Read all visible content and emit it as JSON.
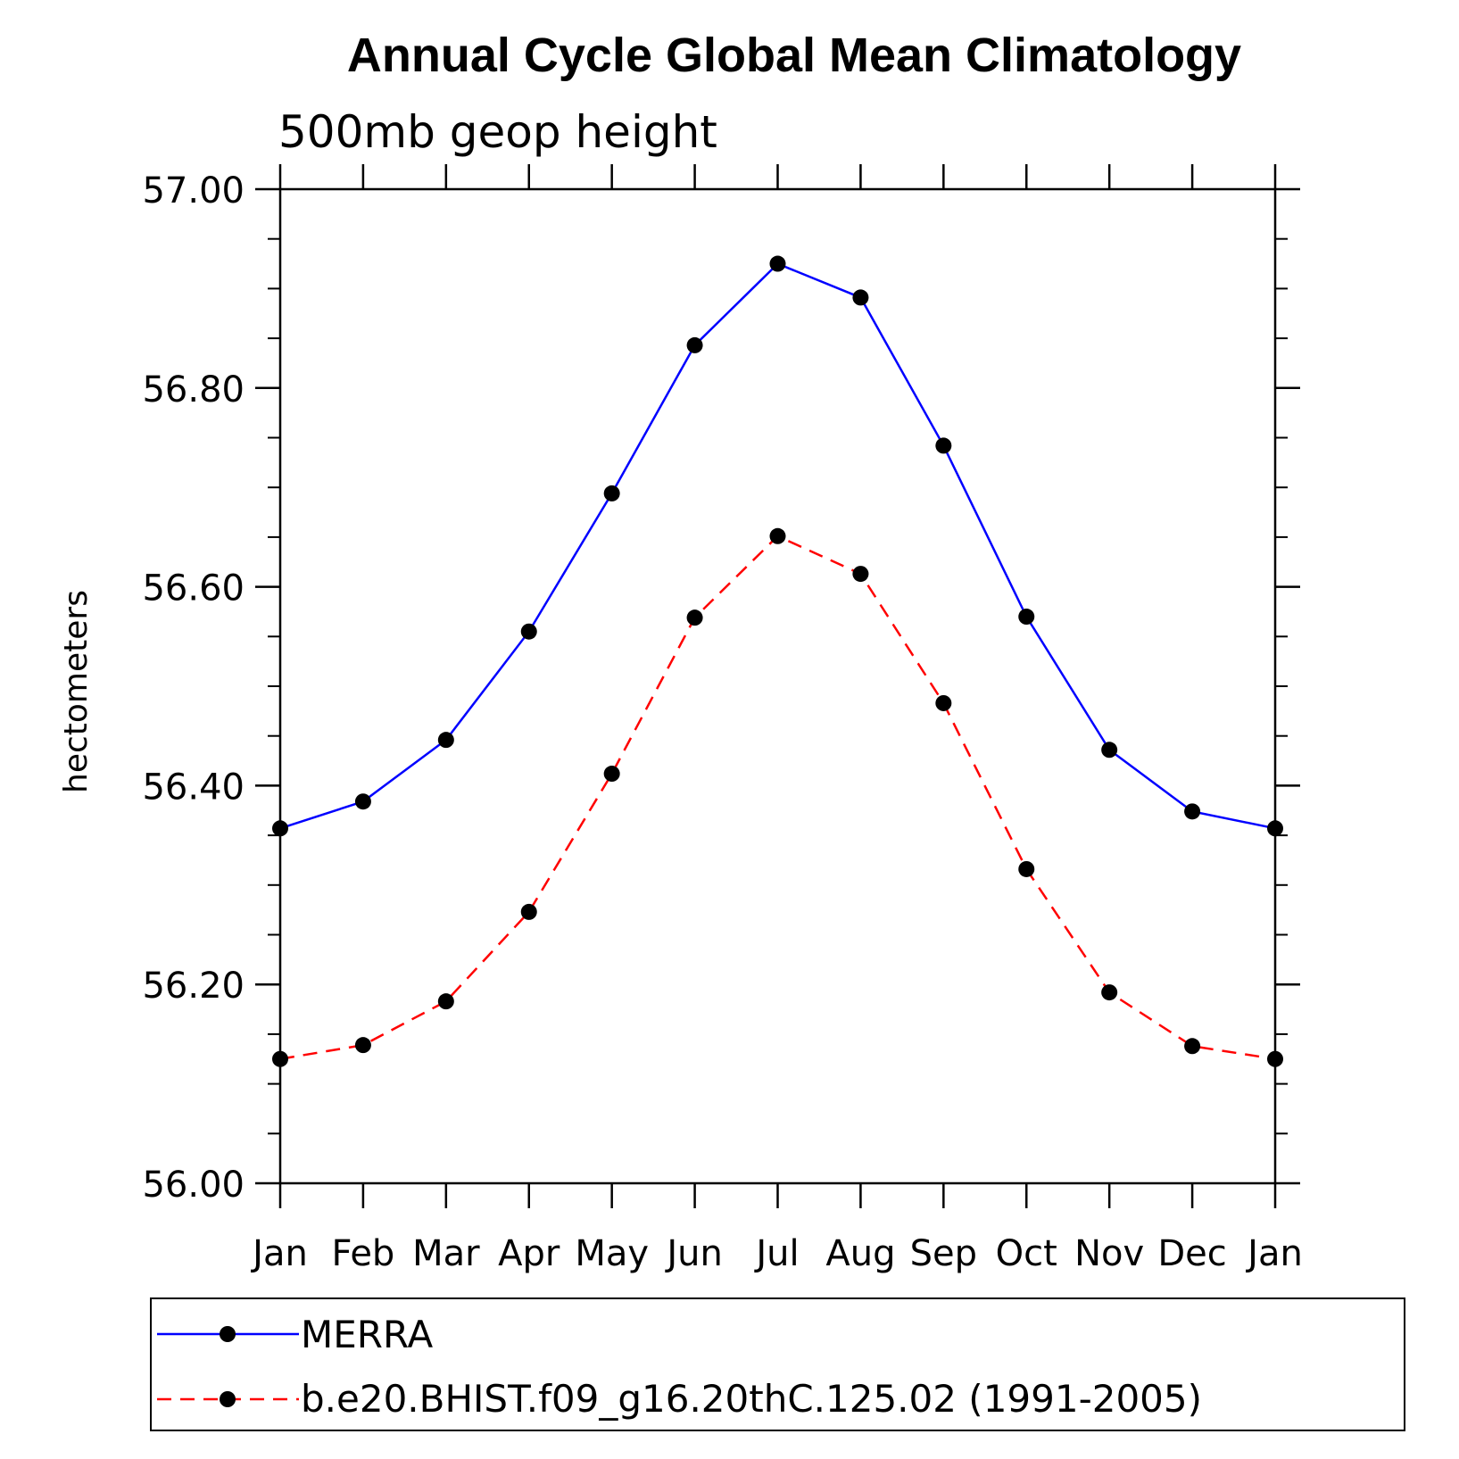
{
  "chart_data": {
    "type": "line",
    "title": "Annual Cycle Global Mean Climatology",
    "subtitle": "500mb geop height",
    "ylabel": "hectometers",
    "xlabel": "",
    "categories": [
      "Jan",
      "Feb",
      "Mar",
      "Apr",
      "May",
      "Jun",
      "Jul",
      "Aug",
      "Sep",
      "Oct",
      "Nov",
      "Dec",
      "Jan"
    ],
    "ylim": [
      56.0,
      57.0
    ],
    "yticks": [
      "57.00",
      "56.80",
      "56.60",
      "56.40",
      "56.20",
      "56.00"
    ],
    "ytick_values": [
      57.0,
      56.8,
      56.6,
      56.4,
      56.2,
      56.0
    ],
    "grid": false,
    "legend_position": "bottom",
    "series": [
      {
        "name": "MERRA",
        "color": "#0000ff",
        "style": "solid",
        "marker": "filled-circle",
        "values": [
          56.357,
          56.384,
          56.446,
          56.555,
          56.694,
          56.843,
          56.925,
          56.891,
          56.742,
          56.57,
          56.436,
          56.374,
          56.357
        ]
      },
      {
        "name": "b.e20.BHIST.f09_g16.20thC.125.02 (1991-2005)",
        "color": "#ff0000",
        "style": "dashed",
        "marker": "filled-circle",
        "values": [
          56.125,
          56.139,
          56.183,
          56.273,
          56.412,
          56.569,
          56.651,
          56.613,
          56.483,
          56.316,
          56.192,
          56.138,
          56.125
        ]
      }
    ]
  }
}
